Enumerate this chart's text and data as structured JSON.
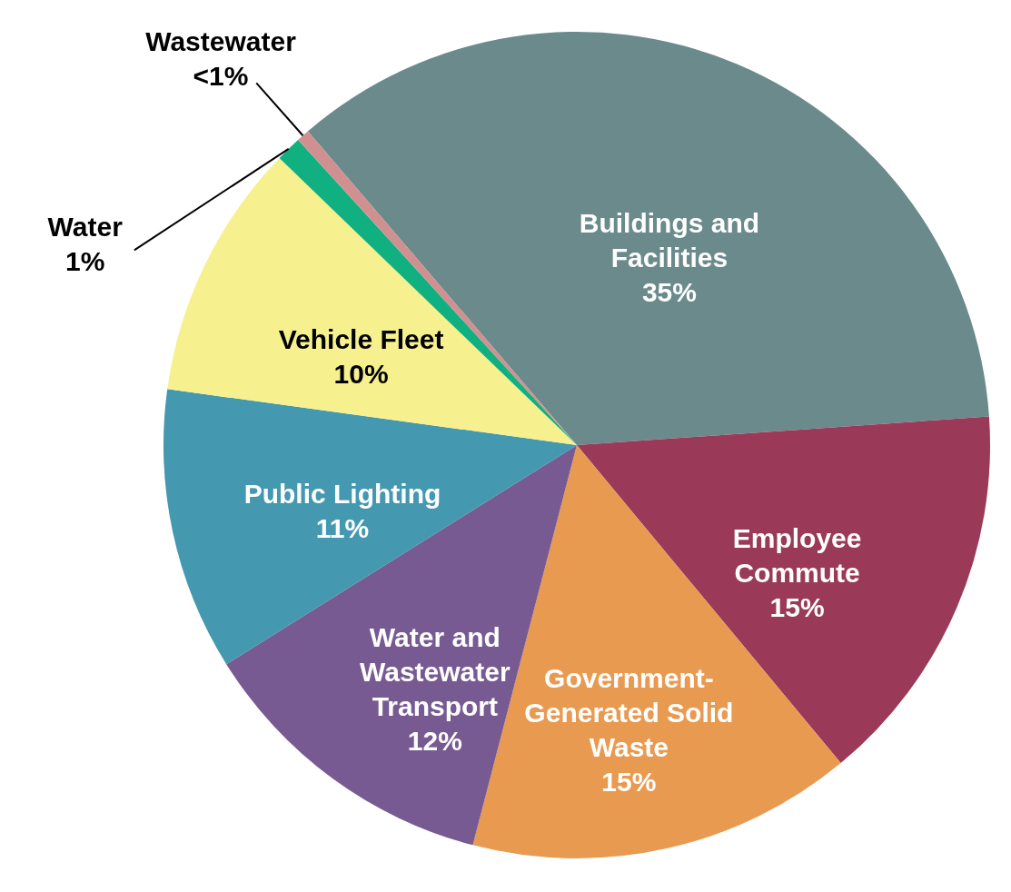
{
  "chart_data": {
    "type": "pie",
    "categories": [
      "Buildings and Facilities",
      "Employee Commute",
      "Government-Generated Solid Waste",
      "Water and Wastewater Transport",
      "Public Lighting",
      "Vehicle Fleet",
      "Water",
      "Wastewater"
    ],
    "values": [
      35,
      15,
      15,
      12,
      11,
      10,
      1,
      0.5
    ],
    "value_labels": [
      "35%",
      "15%",
      "15%",
      "12%",
      "11%",
      "10%",
      "1%",
      "<1%"
    ],
    "colors": [
      "#6a8a8c",
      "#9a3a58",
      "#e89a50",
      "#775a92",
      "#4498b0",
      "#f6f18e",
      "#10b080",
      "#d09090"
    ]
  }
}
